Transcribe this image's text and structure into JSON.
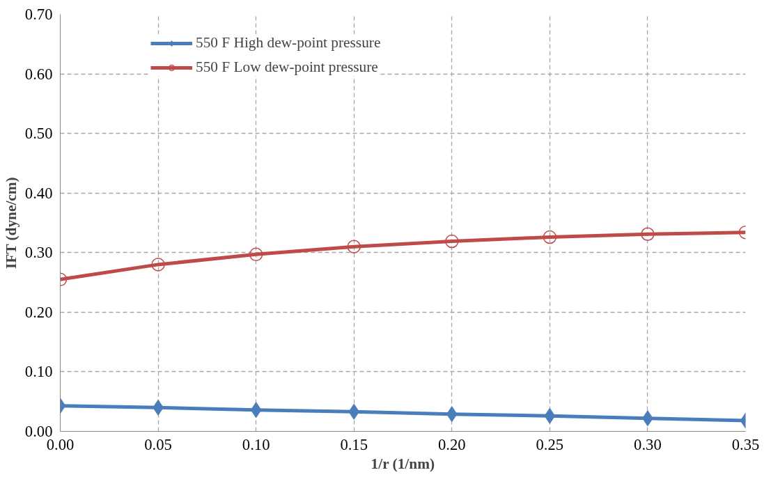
{
  "chart_data": {
    "type": "line",
    "xlabel": "1/r (1/nm)",
    "ylabel": "IFT (dyne/cm)",
    "x": [
      0.0,
      0.05,
      0.1,
      0.15,
      0.2,
      0.25,
      0.3,
      0.35
    ],
    "series": [
      {
        "name": "550 F High dew-point pressure",
        "color": "#4a7ebb",
        "marker": "diamond",
        "values": [
          0.043,
          0.04,
          0.036,
          0.033,
          0.029,
          0.026,
          0.022,
          0.018
        ]
      },
      {
        "name": "550 F Low dew-point pressure",
        "color": "#be4b48",
        "marker": "circle",
        "values": [
          0.255,
          0.28,
          0.297,
          0.31,
          0.319,
          0.326,
          0.331,
          0.334
        ]
      }
    ],
    "xlim": [
      0,
      0.35
    ],
    "xticks": [
      {
        "value": 0,
        "label": "0.00"
      },
      {
        "value": 0.05,
        "label": "0.05"
      },
      {
        "value": 0.1,
        "label": "0.10"
      },
      {
        "value": 0.15,
        "label": "0.15"
      },
      {
        "value": 0.2,
        "label": "0.20"
      },
      {
        "value": 0.25,
        "label": "0.25"
      },
      {
        "value": 0.3,
        "label": "0.30"
      },
      {
        "value": 0.35,
        "label": "0.35"
      }
    ],
    "ylim": [
      0,
      0.7
    ],
    "yticks": [
      {
        "value": 0,
        "label": "0.00"
      },
      {
        "value": 0.1,
        "label": "0.10"
      },
      {
        "value": 0.2,
        "label": "0.20"
      },
      {
        "value": 0.3,
        "label": "0.30"
      },
      {
        "value": 0.4,
        "label": "0.40"
      },
      {
        "value": 0.5,
        "label": "0.50"
      },
      {
        "value": 0.6,
        "label": "0.60"
      },
      {
        "value": 0.7,
        "label": "0.70"
      }
    ],
    "grid": true,
    "legend": "top left",
    "line_style": "solid"
  }
}
